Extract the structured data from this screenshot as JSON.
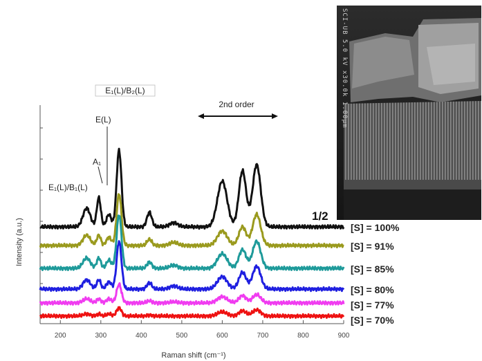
{
  "chart_data": {
    "type": "line",
    "title": "",
    "xlabel": "Raman shift (cm⁻¹)",
    "ylabel": "Intensity (a.u.)",
    "xlim": [
      150,
      900
    ],
    "xticks": [
      "200",
      "300",
      "400",
      "500",
      "600",
      "700",
      "800",
      "900"
    ],
    "xtick_values": [
      200,
      300,
      400,
      500,
      600,
      700,
      800,
      900
    ],
    "grid": false,
    "legend_placement": "right, next to each curve",
    "annotations": {
      "e1_b1": "E₁(L)/B₁(L)",
      "a1": "A₁",
      "e_l": "E(L)",
      "top_label": "E₁(L)/B₂(L)",
      "second_order": "2nd order",
      "fraction": "1/2"
    },
    "peak_positions": [
      265,
      295,
      320,
      345,
      420,
      480,
      600,
      650,
      685
    ],
    "series": [
      {
        "name": "[S] = 100%",
        "color": "#111111",
        "baseline": 328,
        "peaks": [
          0.9,
          1.4,
          0.6,
          3.7,
          0.7,
          0.2,
          2.2,
          2.7,
          3.0
        ]
      },
      {
        "name": "[S] = 91%",
        "color": "#9a9a1e",
        "baseline": 355,
        "peaks": [
          0.5,
          0.5,
          0.4,
          2.5,
          0.3,
          0.15,
          0.7,
          0.9,
          1.5
        ]
      },
      {
        "name": "[S] = 85%",
        "color": "#1e9a9a",
        "baseline": 388,
        "peaks": [
          0.5,
          0.5,
          0.4,
          2.6,
          0.3,
          0.15,
          0.7,
          0.9,
          1.3
        ]
      },
      {
        "name": "[S] = 80%",
        "color": "#1f1fe0",
        "baseline": 418,
        "peaks": [
          0.45,
          0.45,
          0.35,
          2.3,
          0.3,
          0.15,
          0.6,
          0.8,
          1.1
        ]
      },
      {
        "name": "[S] = 77%",
        "color": "#f03cf0",
        "baseline": 438,
        "peaks": [
          0.2,
          0.2,
          0.2,
          0.9,
          0.1,
          0.05,
          0.3,
          0.35,
          0.4
        ]
      },
      {
        "name": "[S] = 70%",
        "color": "#ee1111",
        "baseline": 457,
        "peaks": [
          0.1,
          0.1,
          0.1,
          0.4,
          0.05,
          0.0,
          0.2,
          0.25,
          0.3
        ]
      }
    ]
  },
  "inset": {
    "label": "SCI-UB 5.0 kV x30.0k 1.00µm"
  }
}
